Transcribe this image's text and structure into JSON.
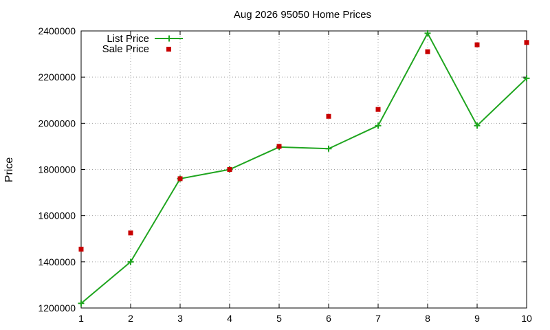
{
  "chart_data": {
    "type": "line",
    "title": "Aug 2026 95050 Home Prices",
    "xlabel": "",
    "ylabel": "Price",
    "x": [
      1,
      2,
      3,
      4,
      5,
      6,
      7,
      8,
      9,
      10
    ],
    "xlim": [
      1,
      10
    ],
    "ylim": [
      1200000,
      2400000
    ],
    "xticks": [
      "1",
      "2",
      "3",
      "4",
      "5",
      "6",
      "7",
      "8",
      "9",
      "10"
    ],
    "yticks": [
      "1200000",
      "1400000",
      "1600000",
      "1800000",
      "2000000",
      "2200000",
      "2400000"
    ],
    "grid": true,
    "legend_position": "top-left",
    "series": [
      {
        "name": "List Price",
        "style": "linespoints",
        "marker": "plus",
        "color": "#1fa51f",
        "values": [
          1220000,
          1400000,
          1760000,
          1800000,
          1897000,
          1890000,
          1990000,
          2390000,
          1990000,
          2195000
        ]
      },
      {
        "name": "Sale Price",
        "style": "points",
        "marker": "square",
        "color": "#c80000",
        "values": [
          1455000,
          1525000,
          1760000,
          1800000,
          1900000,
          2030000,
          2060000,
          2310000,
          2340000,
          2350000
        ]
      }
    ]
  }
}
